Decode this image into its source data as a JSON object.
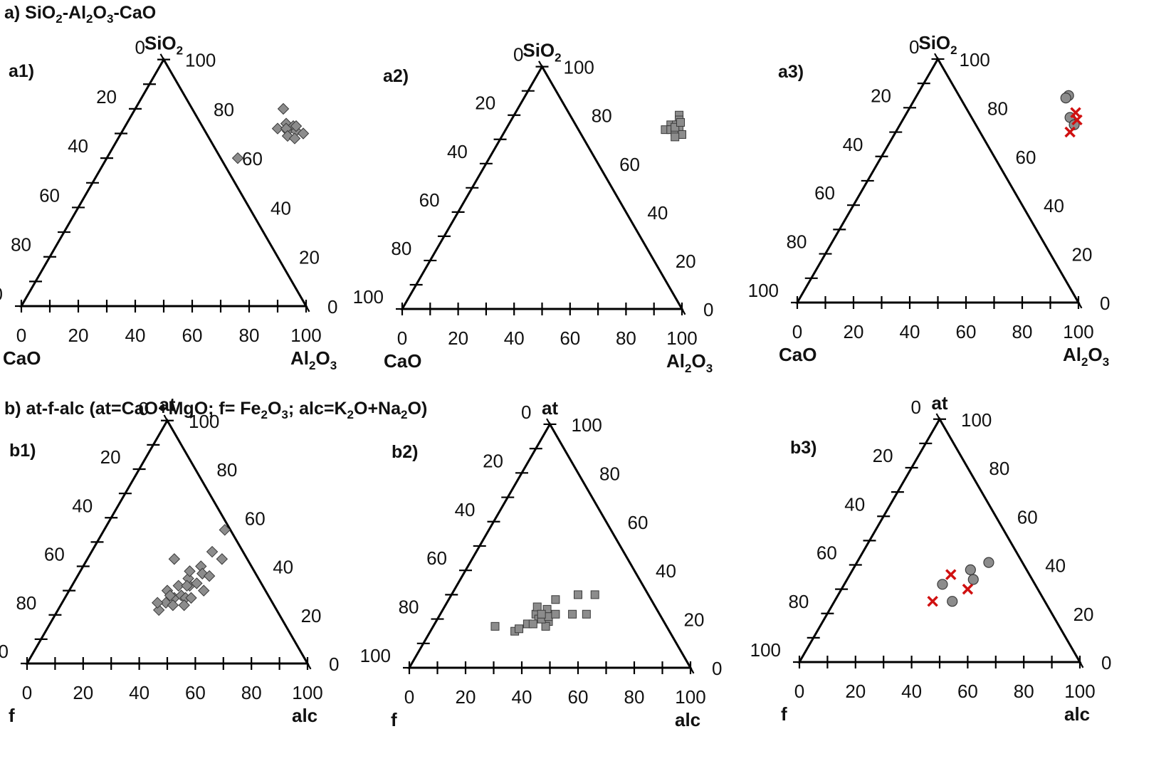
{
  "sections": {
    "a": {
      "title_parts": [
        "a) SiO",
        "2",
        "-Al",
        "2",
        "O",
        "3",
        "-CaO"
      ]
    },
    "b": {
      "title_parts": [
        "b) at-f-alc (at=CaO+MgO; f= Fe",
        "2",
        "O",
        "3",
        "; alc=K",
        "2",
        "O+Na",
        "2",
        "O)"
      ]
    }
  },
  "colors": {
    "gray_marker": "#8c8c8c",
    "marker_edge": "#3a3a3a",
    "red_marker": "#d01010",
    "axis": "#000000"
  },
  "chart_data": [
    {
      "id": "a1",
      "type": "scatter",
      "ternary": true,
      "label": "a1)",
      "corners": {
        "top": [
          "SiO",
          "2",
          ""
        ],
        "left": [
          "CaO"
        ],
        "right": [
          "Al",
          "2",
          "O",
          "3",
          ""
        ]
      },
      "ticks": [
        "0",
        "20",
        "40",
        "60",
        "80",
        "100"
      ],
      "series": [
        {
          "marker": "diamond",
          "color": "#8c8c8c",
          "points": [
            [
              52,
              80
            ],
            [
              56,
              74
            ],
            [
              54,
              72
            ],
            [
              58,
              71
            ],
            [
              59,
              73
            ],
            [
              57,
              72
            ],
            [
              61,
              71
            ],
            [
              59,
              69
            ],
            [
              62,
              68
            ],
            [
              64,
              70
            ],
            [
              60,
              73
            ],
            [
              46,
              60
            ]
          ]
        }
      ]
    },
    {
      "id": "a2",
      "type": "scatter",
      "ternary": true,
      "label": "a2)",
      "corners": {
        "top": [
          "SiO",
          "2",
          ""
        ],
        "left": [
          "CaO"
        ],
        "right": [
          "Al",
          "2",
          "O",
          "3",
          ""
        ]
      },
      "ticks": [
        "0",
        "20",
        "40",
        "60",
        "80",
        "100"
      ],
      "series": [
        {
          "marker": "square",
          "color": "#8c8c8c",
          "points": [
            [
              59,
              80
            ],
            [
              60,
              78
            ],
            [
              58,
              76
            ],
            [
              57,
              74
            ],
            [
              59,
              74
            ],
            [
              60,
              76
            ],
            [
              62,
              74
            ],
            [
              63,
              72
            ],
            [
              61,
              73
            ],
            [
              64,
              72
            ],
            [
              62,
              71
            ],
            [
              60,
              75
            ],
            [
              61,
              77
            ]
          ]
        }
      ]
    },
    {
      "id": "a3",
      "type": "scatter",
      "ternary": true,
      "label": "a3)",
      "corners": {
        "top": [
          "SiO",
          "2",
          ""
        ],
        "left": [
          "CaO"
        ],
        "right": [
          "Al",
          "2",
          "O",
          "3",
          ""
        ]
      },
      "ticks": [
        "0",
        "20",
        "40",
        "60",
        "80",
        "100"
      ],
      "series": [
        {
          "marker": "circle",
          "color": "#8c8c8c",
          "points": [
            [
              54,
              85
            ],
            [
              53.5,
              84
            ],
            [
              59,
              76
            ],
            [
              62,
              73
            ]
          ]
        },
        {
          "marker": "x",
          "color": "#d01010",
          "points": [
            [
              60,
              78
            ],
            [
              62,
              75
            ],
            [
              62,
              70
            ]
          ]
        }
      ]
    },
    {
      "id": "b1",
      "type": "scatter",
      "ternary": true,
      "label": "b1)",
      "corners": {
        "top": [
          "at"
        ],
        "left": [
          "f"
        ],
        "right": [
          "alc"
        ]
      },
      "ticks": [
        "0",
        "20",
        "40",
        "60",
        "80",
        "100"
      ],
      "series": [
        {
          "marker": "diamond",
          "color": "#8c8c8c",
          "points": [
            [
              31,
              43
            ],
            [
              43,
              55
            ],
            [
              43,
              46
            ],
            [
              48,
              43
            ],
            [
              36,
              22
            ],
            [
              37,
              25
            ],
            [
              39,
              27
            ],
            [
              41,
              28
            ],
            [
              42,
              32
            ],
            [
              44,
              33
            ],
            [
              40,
              35
            ],
            [
              38,
              32
            ],
            [
              43,
              27
            ],
            [
              35,
              30
            ],
            [
              45,
              27
            ],
            [
              39,
              38
            ],
            [
              42,
              40
            ],
            [
              44,
              37
            ],
            [
              47,
              36
            ],
            [
              40,
              24
            ],
            [
              37,
              28
            ],
            [
              44,
              24
            ],
            [
              48,
              30
            ],
            [
              34,
              25
            ],
            [
              41,
              32
            ]
          ]
        }
      ]
    },
    {
      "id": "b2",
      "type": "scatter",
      "ternary": true,
      "label": "b2)",
      "corners": {
        "top": [
          "at"
        ],
        "left": [
          "f"
        ],
        "right": [
          "alc"
        ]
      },
      "ticks": [
        "0",
        "20",
        "40",
        "60",
        "80",
        "100"
      ],
      "series": [
        {
          "marker": "square",
          "color": "#8c8c8c",
          "points": [
            [
              22,
              17
            ],
            [
              30,
              15
            ],
            [
              31,
              16
            ],
            [
              33,
              18
            ],
            [
              34,
              22
            ],
            [
              36,
              20
            ],
            [
              38,
              22
            ],
            [
              37,
              24
            ],
            [
              40,
              19
            ],
            [
              33,
              25
            ],
            [
              38,
              28
            ],
            [
              45,
              30
            ],
            [
              51,
              30
            ],
            [
              52,
              22
            ],
            [
              47,
              22
            ],
            [
              40,
              17
            ],
            [
              35,
              18
            ],
            [
              37,
              20
            ],
            [
              39,
              21
            ],
            [
              36,
              22
            ],
            [
              41,
              22
            ]
          ]
        }
      ]
    },
    {
      "id": "b3",
      "type": "scatter",
      "ternary": true,
      "label": "b3)",
      "corners": {
        "top": [
          "at"
        ],
        "left": [
          "f"
        ],
        "right": [
          "alc"
        ]
      },
      "ticks": [
        "0",
        "20",
        "40",
        "60",
        "80",
        "100"
      ],
      "series": [
        {
          "marker": "circle",
          "color": "#8c8c8c",
          "points": [
            [
              35,
              32
            ],
            [
              42,
              38
            ],
            [
              45,
              34
            ],
            [
              47,
              41
            ],
            [
              42,
              25
            ]
          ]
        },
        {
          "marker": "x",
          "color": "#d01010",
          "points": [
            [
              36,
              36
            ],
            [
              35,
              25
            ],
            [
              45,
              30
            ]
          ]
        }
      ]
    }
  ]
}
